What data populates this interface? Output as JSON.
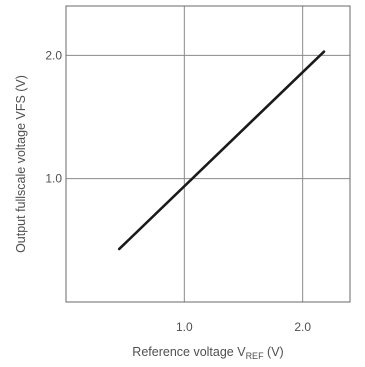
{
  "chart_data": {
    "type": "line",
    "title": "",
    "xlabel": "Reference voltage V",
    "xlabel_subscript": "REF",
    "xlabel_suffix": " (V)",
    "ylabel": "Output fullscale voltage VFS (V)",
    "xlim": [
      0,
      2.4
    ],
    "ylim": [
      0,
      2.4
    ],
    "x_ticks": [
      1.0,
      2.0
    ],
    "x_tick_labels": [
      "1.0",
      "2.0"
    ],
    "y_ticks": [
      1.0,
      2.0
    ],
    "y_tick_labels": [
      "1.0",
      "2.0"
    ],
    "grid": true,
    "series": [
      {
        "x": [
          0.45,
          2.18
        ],
        "y": [
          0.43,
          2.03
        ]
      }
    ],
    "colors": {
      "line": "#1a1a1a",
      "grid": "#8a8a8a",
      "frame": "#6a6a6a",
      "text": "#505050"
    }
  }
}
